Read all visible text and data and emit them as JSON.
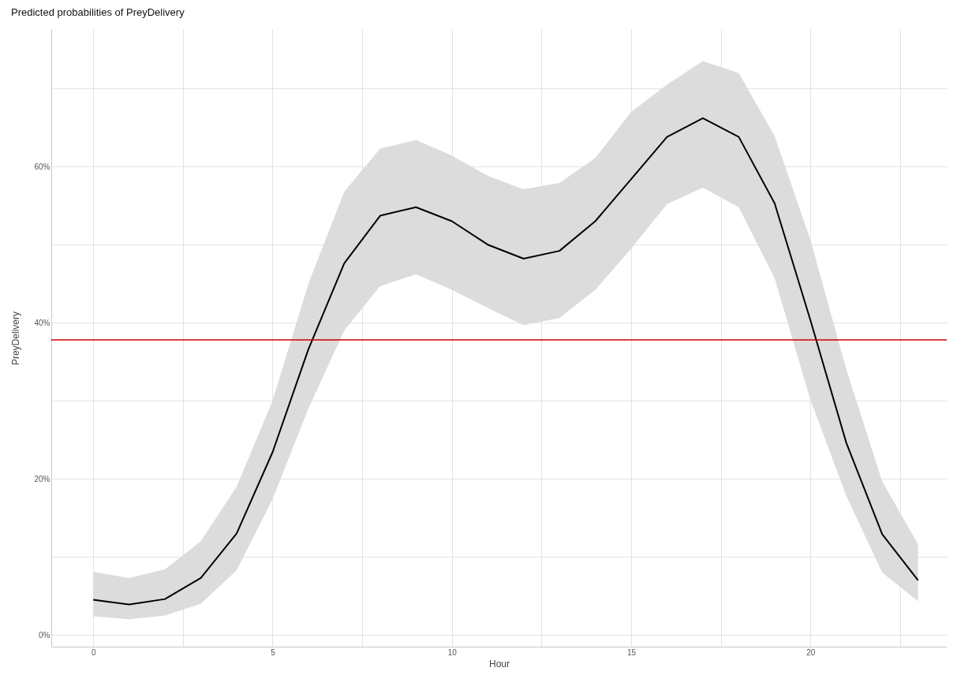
{
  "chart_data": {
    "type": "line",
    "title": "Predicted probabilities of PreyDelivery",
    "xlabel": "Hour",
    "ylabel": "PreyDelivery",
    "x": [
      0,
      1,
      2,
      3,
      4,
      5,
      6,
      7,
      8,
      9,
      10,
      11,
      12,
      13,
      14,
      15,
      16,
      17,
      18,
      19,
      20,
      21,
      22,
      23
    ],
    "series": [
      {
        "color": "#000000",
        "values": [
          4.5,
          3.9,
          4.6,
          7.3,
          13.0,
          23.4,
          36.6,
          47.6,
          53.7,
          54.8,
          53.0,
          50.0,
          48.2,
          49.2,
          53.0,
          58.4,
          63.8,
          66.2,
          63.8,
          55.3,
          40.3,
          24.6,
          12.9,
          7.0
        ],
        "lower": [
          2.4,
          2.0,
          2.5,
          4.0,
          8.3,
          17.4,
          29.0,
          39.0,
          44.7,
          46.2,
          44.2,
          41.9,
          39.7,
          40.6,
          44.2,
          49.5,
          55.2,
          57.3,
          54.8,
          45.7,
          30.1,
          17.8,
          8.0,
          4.3
        ],
        "upper": [
          8.1,
          7.3,
          8.4,
          12.0,
          19.0,
          30.0,
          45.0,
          56.8,
          62.3,
          63.4,
          61.4,
          58.8,
          57.1,
          57.9,
          61.1,
          67.0,
          70.5,
          73.5,
          72.0,
          63.9,
          50.6,
          34.0,
          19.7,
          11.6
        ]
      }
    ],
    "ref_lines": [
      {
        "axis": "y",
        "value": 37.8,
        "color": "#cc0000"
      }
    ],
    "xlim": [
      -1.17,
      23.8
    ],
    "xticks": [
      0,
      {
        "value": 2.5,
        "label": null
      },
      5,
      {
        "value": 7.5,
        "label": null
      },
      10,
      {
        "value": 12.5,
        "label": null
      },
      15,
      {
        "value": 17.5,
        "label": null
      },
      20,
      {
        "value": 22.5,
        "label": null
      }
    ],
    "ylim": [
      -1.5,
      77.6
    ],
    "yticks": [
      {
        "value": 0,
        "label": "0%"
      },
      {
        "value": 10,
        "label": null
      },
      {
        "value": 20,
        "label": "20%"
      },
      {
        "value": 30,
        "label": null
      },
      {
        "value": 40,
        "label": "40%"
      },
      {
        "value": 50,
        "label": null
      },
      {
        "value": 60,
        "label": "60%"
      },
      {
        "value": 70,
        "label": null
      }
    ],
    "grid": true,
    "marker": "none",
    "line_style": "solid"
  }
}
